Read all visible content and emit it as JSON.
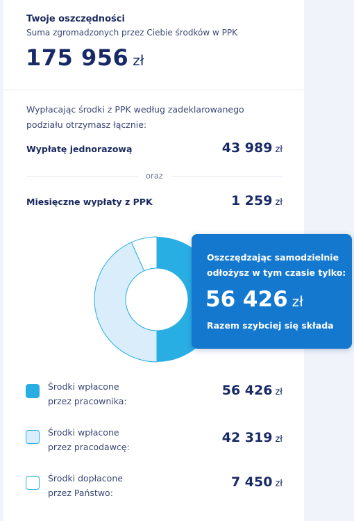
{
  "savings": {
    "title": "Twoje oszczędności",
    "subtitle": "Suma zgromadzonych przez Ciebie środków w PPK",
    "amount": "175 956",
    "currency": "zł"
  },
  "payout": {
    "intro_line1": "Wypłacając środki z PPK według zadeklarowanego",
    "intro_line2": "podziału otrzymasz łącznie:",
    "lump_label": "Wypłatę jednorazową",
    "lump_amount": "43 989",
    "or_text": "oraz",
    "monthly_label": "Miesięczne wypłaty z PPK",
    "monthly_amount": "1 259",
    "currency": "zł"
  },
  "tooltip": {
    "line1": "Oszczędzając samodzielnie",
    "line2": "odłożysz w tym czasie tylko:",
    "amount": "56 426",
    "currency": "zł",
    "footer": "Razem szybciej się składa"
  },
  "legend": [
    {
      "line1": "Środki wpłacone",
      "line2": "przez pracownika:",
      "amount": "56 426",
      "currency": "zł",
      "color": "#29aee3"
    },
    {
      "line1": "Środki wpłacone",
      "line2": "przez pracodawcę:",
      "amount": "42 319",
      "currency": "zł",
      "color": "#d9eefa"
    },
    {
      "line1": "Środki dopłacone",
      "line2": "przez Państwo:",
      "amount": "7 450",
      "currency": "zł",
      "color": "#ffffff"
    }
  ],
  "colors": {
    "navy": "#172a66",
    "employee": "#29aee3",
    "employer": "#d9eefa",
    "state": "#ffffff",
    "tooltip_bg": "#1478cf"
  }
}
